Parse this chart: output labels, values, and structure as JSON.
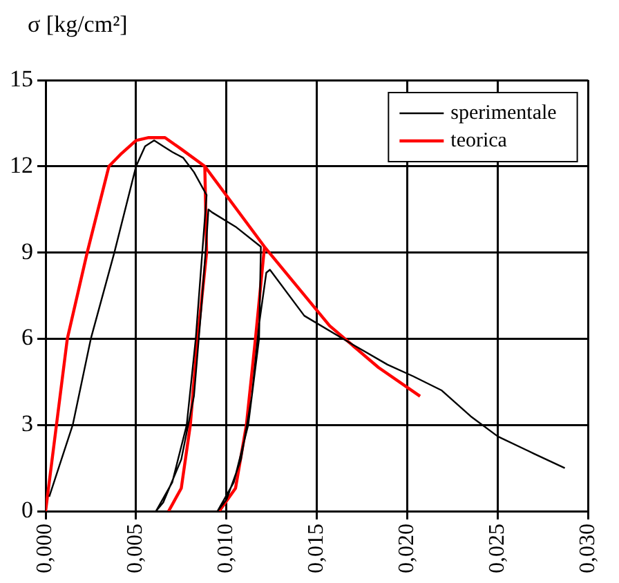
{
  "chart_data": {
    "type": "line",
    "ylabel": "σ [kg/cm²]",
    "xlim": [
      0,
      0.03
    ],
    "xticks": [
      {
        "value": 0,
        "label": "0,000"
      },
      {
        "value": 0.005,
        "label": "0,005"
      },
      {
        "value": 0.01,
        "label": "0,010"
      },
      {
        "value": 0.015,
        "label": "0,015"
      },
      {
        "value": 0.02,
        "label": "0,020"
      },
      {
        "value": 0.025,
        "label": "0,025"
      },
      {
        "value": 0.03,
        "label": "0,030"
      }
    ],
    "ylim": [
      0,
      15
    ],
    "yticks": [
      0,
      3,
      6,
      9,
      12,
      15
    ],
    "grid": true,
    "legend": "top right",
    "marker": "none",
    "line_style": "solid",
    "series": [
      {
        "name": "sperimentale",
        "color": "#000000",
        "x": [
          0.0002,
          0.0015,
          0.0025,
          0.0038,
          0.005,
          0.0055,
          0.006,
          0.0065,
          0.007,
          0.0076,
          0.0082,
          0.0089,
          0.0083,
          0.0078,
          0.007,
          0.0061,
          0.0065,
          0.0075,
          0.0082,
          0.0086,
          0.0089,
          0.009,
          0.0092,
          0.0105,
          0.0119,
          0.0118,
          0.0112,
          0.0104,
          0.0095,
          0.01,
          0.0108,
          0.0114,
          0.0118,
          0.0122,
          0.0124,
          0.0143,
          0.0167,
          0.0189,
          0.0203,
          0.0219,
          0.0235,
          0.025,
          0.027,
          0.0287
        ],
        "values": [
          0.5,
          3,
          6,
          9,
          12,
          12.7,
          12.9,
          12.7,
          12.5,
          12.3,
          11.8,
          11,
          6,
          3,
          1,
          0,
          0.3,
          1.8,
          4,
          7,
          9.5,
          10.5,
          10.4,
          9.9,
          9.2,
          6,
          3,
          1,
          0,
          0.4,
          1.8,
          4,
          6.5,
          8.3,
          8.4,
          6.8,
          5.9,
          5.1,
          4.7,
          4.2,
          3.3,
          2.6,
          2,
          1.5
        ]
      },
      {
        "name": "teorica",
        "color": "#ff0000",
        "x": [
          0,
          0.0006,
          0.0012,
          0.0023,
          0.0035,
          0.0042,
          0.005,
          0.0057,
          0.0066,
          0.0075,
          0.0088,
          0.0121,
          0.0157,
          0.0184,
          0.0207
        ],
        "values": [
          0,
          3,
          6,
          9,
          12,
          12.45,
          12.9,
          13,
          13,
          12.6,
          12,
          9.2,
          6.45,
          5,
          4
        ]
      },
      {
        "color": "#ff0000",
        "x": [
          0.0088,
          0.0089,
          0.0084,
          0.008,
          0.0075,
          0.0068
        ],
        "values": [
          12,
          9,
          6,
          3,
          0.8,
          0
        ]
      },
      {
        "color": "#ff0000",
        "x": [
          0.0121,
          0.0116,
          0.0111,
          0.0105,
          0.0096
        ],
        "values": [
          9.2,
          6,
          3,
          0.8,
          0
        ]
      }
    ]
  }
}
